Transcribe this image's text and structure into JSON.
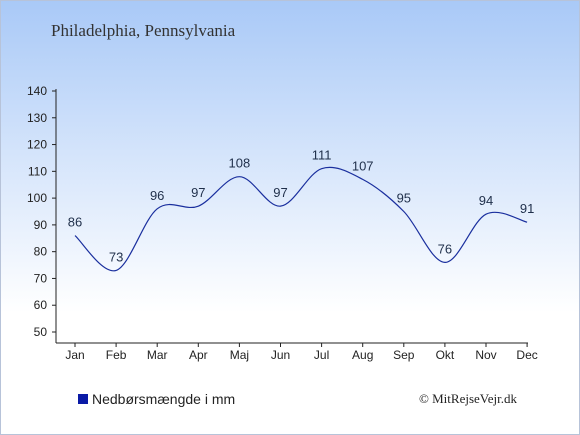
{
  "title": "Philadelphia, Pennsylvania",
  "legend_label": "Nedbørsmængde i mm",
  "credit": "© MitRejseVejr.dk",
  "colors": {
    "series": "#1a2f9e",
    "swatch": "#0a1aa6",
    "axis": "#222222"
  },
  "chart_data": {
    "type": "line",
    "categories": [
      "Jan",
      "Feb",
      "Mar",
      "Apr",
      "Maj",
      "Jun",
      "Jul",
      "Aug",
      "Sep",
      "Okt",
      "Nov",
      "Dec"
    ],
    "series": [
      {
        "name": "Nedbørsmængde i mm",
        "values": [
          86,
          73,
          96,
          97,
          108,
          97,
          111,
          107,
          95,
          76,
          94,
          91
        ]
      }
    ],
    "ylim": [
      50,
      140
    ],
    "yticks": [
      50,
      60,
      70,
      80,
      90,
      100,
      110,
      120,
      130,
      140
    ],
    "grid": false,
    "legend": "bottom-left"
  }
}
